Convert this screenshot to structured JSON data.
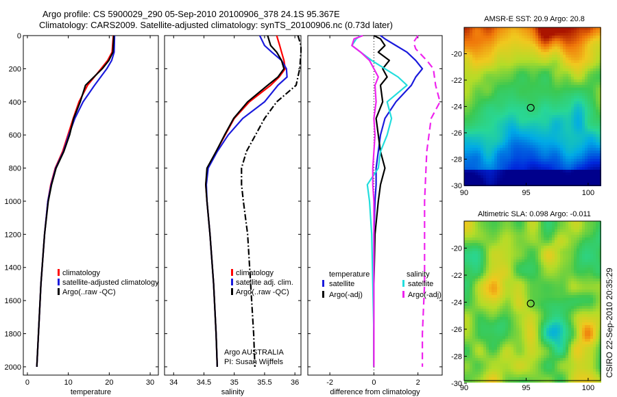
{
  "header": {
    "line1": "Argo profile: CS 5900029_290 05-Sep-2010 20100906_378 24.1S 95.367E",
    "line2": "Climatology: CARS2009. Satellite-adjusted climatology: synTS_20100906.nc (0.73d later)"
  },
  "side_label": "CSIRO 22-Sep-2010 20:35:29",
  "colors": {
    "clim": "#ff0000",
    "sat": "#1a1adc",
    "argo": "#000000",
    "sat_sal": "#22dddd",
    "argo_sal": "#ee22ee"
  },
  "chart_data": [
    {
      "type": "line",
      "xlabel": "temperature",
      "xlim": [
        -1,
        32
      ],
      "ylim": [
        2050,
        0
      ],
      "xticks": [
        0,
        10,
        20,
        30
      ],
      "yticks": [
        0,
        200,
        400,
        600,
        800,
        1000,
        1200,
        1400,
        1600,
        1800,
        2000
      ],
      "legend": [
        "climatology",
        "satellite-adjusted climatology",
        "Argo(..raw -QC)"
      ],
      "series": [
        {
          "name": "climatology",
          "color": "clim",
          "dash": "",
          "depth": [
            0,
            100,
            150,
            200,
            300,
            400,
            500,
            600,
            700,
            800,
            900,
            1000,
            1200,
            1500,
            1800,
            2000
          ],
          "values": [
            21.0,
            20.7,
            19.6,
            18.0,
            14.7,
            12.6,
            11.2,
            9.9,
            8.6,
            6.8,
            5.7,
            5.0,
            4.2,
            3.3,
            2.7,
            2.3
          ]
        },
        {
          "name": "satellite-adjusted climatology",
          "color": "sat",
          "dash": "",
          "depth": [
            0,
            100,
            150,
            200,
            300,
            400,
            500,
            600,
            700,
            800,
            900,
            1000,
            1200,
            1500,
            1800,
            2000
          ],
          "values": [
            21.3,
            21.2,
            20.6,
            19.4,
            16.4,
            13.6,
            11.6,
            10.1,
            8.8,
            6.9,
            5.8,
            5.0,
            4.2,
            3.3,
            2.7,
            2.3
          ]
        },
        {
          "name": "Argo(..raw -QC)",
          "color": "argo",
          "dash": "",
          "depth": [
            0,
            100,
            150,
            200,
            300,
            400,
            500,
            600,
            700,
            800,
            900,
            1000,
            1200,
            1500,
            1800,
            2000
          ],
          "values": [
            21.1,
            20.9,
            19.9,
            18.3,
            14.2,
            12.9,
            11.3,
            10.3,
            8.9,
            7.0,
            5.9,
            5.1,
            4.2,
            3.3,
            2.7,
            2.3
          ]
        }
      ]
    },
    {
      "type": "line",
      "xlabel": "salinity",
      "xlim": [
        33.85,
        36.1
      ],
      "ylim": [
        2050,
        0
      ],
      "xticks": [
        34,
        34.5,
        35,
        35.5,
        36
      ],
      "legend": [
        "climatology",
        "satellite adj. clim.",
        "Argo(..raw -QC)"
      ],
      "annotation": [
        "Argo AUSTRALIA",
        "PI: Susan Wijffels"
      ],
      "series": [
        {
          "name": "climatology",
          "color": "clim",
          "dash": "",
          "depth": [
            0,
            60,
            100,
            150,
            200,
            250,
            300,
            400,
            500,
            600,
            700,
            800,
            900,
            1000,
            1200,
            1500,
            1800,
            2000
          ],
          "values": [
            35.7,
            35.75,
            35.78,
            35.82,
            35.84,
            35.74,
            35.6,
            35.25,
            35.0,
            34.85,
            34.7,
            34.56,
            34.53,
            34.55,
            34.6,
            34.66,
            34.7,
            34.72
          ]
        },
        {
          "name": "satellite adj. clim.",
          "color": "sat",
          "dash": "",
          "depth": [
            0,
            60,
            100,
            150,
            200,
            250,
            300,
            400,
            500,
            600,
            700,
            800,
            900,
            1000,
            1200,
            1500,
            1800,
            2000
          ],
          "values": [
            35.42,
            35.5,
            35.62,
            35.78,
            35.86,
            35.87,
            35.72,
            35.5,
            35.14,
            34.9,
            34.72,
            34.57,
            34.54,
            34.55,
            34.6,
            34.66,
            34.7,
            34.72
          ]
        },
        {
          "name": "Argo(..raw -QC)",
          "color": "argo",
          "dash": "",
          "depth": [
            0,
            60,
            100,
            150,
            200,
            250,
            300,
            400,
            500,
            600,
            700,
            800,
            900,
            1000,
            1200,
            1500,
            1800,
            2000
          ],
          "values": [
            35.55,
            35.6,
            35.7,
            35.78,
            35.82,
            35.72,
            35.55,
            35.22,
            34.99,
            34.84,
            34.7,
            34.55,
            34.53,
            34.55,
            34.6,
            34.66,
            34.7,
            34.72
          ]
        },
        {
          "name": "Argo raw",
          "color": "argo",
          "dash": "9 3 2 3",
          "depth": [
            0,
            60,
            100,
            200,
            300,
            400,
            500,
            600,
            700,
            800,
            900,
            1000,
            1200,
            1500,
            1800,
            2000
          ],
          "values": [
            36.05,
            36.1,
            36.1,
            36.08,
            36.02,
            35.7,
            35.5,
            35.35,
            35.2,
            35.12,
            35.12,
            35.15,
            35.22,
            35.27,
            35.32,
            35.34
          ]
        }
      ]
    },
    {
      "type": "line",
      "xlabel": "difference from climatology",
      "xlim": [
        -3.0,
        3.1
      ],
      "ylim": [
        2050,
        0
      ],
      "xticks": [
        -2,
        0,
        2
      ],
      "legend_groups": [
        {
          "title": "temperature",
          "items": [
            "satellite",
            "Argo(-adj)"
          ]
        },
        {
          "title": "salinity",
          "items": [
            "satellite",
            "Argo(-adj)"
          ]
        }
      ],
      "series": [
        {
          "name": "temperature satellite",
          "color": "sat",
          "dash": "",
          "depth": [
            0,
            20,
            60,
            100,
            150,
            200,
            250,
            300,
            400,
            500,
            600,
            700,
            800,
            900,
            1000,
            1200,
            1500,
            1800,
            2000
          ],
          "values": [
            0.3,
            0.5,
            1.0,
            1.5,
            1.9,
            2.2,
            1.9,
            1.7,
            1.0,
            0.5,
            0.3,
            0.2,
            0.1,
            0.1,
            0.05,
            0.0,
            0.0,
            0.0,
            0.0
          ]
        },
        {
          "name": "temperature Argo(-adj)",
          "color": "argo",
          "dash": "",
          "depth": [
            0,
            20,
            60,
            100,
            150,
            200,
            250,
            300,
            400,
            500,
            600,
            700,
            800,
            900,
            1000,
            1200,
            1500,
            1800,
            2000
          ],
          "values": [
            0.0,
            0.3,
            0.5,
            0.2,
            0.7,
            0.4,
            0.6,
            0.3,
            0.4,
            0.1,
            0.2,
            0.3,
            0.5,
            0.3,
            0.2,
            0.05,
            0.0,
            0.0,
            0.0
          ]
        },
        {
          "name": "salinity satellite",
          "color": "sat_sal",
          "dash": "",
          "depth": [
            0,
            20,
            60,
            100,
            150,
            200,
            250,
            300,
            400,
            500,
            600,
            700,
            800,
            900,
            1000,
            1200,
            1500,
            1800,
            2000
          ],
          "values": [
            -0.6,
            -0.8,
            -1.0,
            -0.6,
            -0.1,
            0.5,
            1.1,
            1.5,
            0.6,
            0.8,
            0.6,
            0.3,
            0.2,
            -0.3,
            -0.2,
            -0.1,
            -0.05,
            0.0,
            0.0
          ]
        },
        {
          "name": "salinity Argo(-adj)",
          "color": "argo_sal",
          "dash": "",
          "depth": [
            0,
            20,
            60,
            100,
            150,
            200,
            250,
            300,
            400,
            500,
            600,
            700,
            800,
            900,
            1000,
            1200,
            1500,
            1800,
            2000
          ],
          "values": [
            -0.5,
            -0.9,
            -1.0,
            -0.6,
            -0.2,
            0.0,
            0.2,
            0.05,
            0.1,
            0.0,
            0.05,
            0.0,
            -0.05,
            -0.05,
            0.0,
            0.0,
            0.0,
            0.0,
            0.0
          ]
        },
        {
          "name": "salinity Argo(-adj) dashed",
          "color": "argo_sal",
          "dash": "10 6",
          "depth": [
            0,
            40,
            80,
            150,
            200,
            300,
            400,
            500,
            700,
            1000,
            1200,
            1500,
            1800,
            2000
          ],
          "values": [
            2.0,
            1.8,
            1.9,
            2.4,
            2.7,
            2.8,
            3.0,
            2.6,
            2.4,
            2.3,
            2.3,
            2.3,
            2.2,
            2.2
          ]
        }
      ]
    },
    {
      "type": "heatmap",
      "title": "AMSR-E SST: 20.9 Argo: 20.8",
      "xlim": [
        90,
        101
      ],
      "ylim": [
        -30,
        -18
      ],
      "xticks": [
        90,
        95,
        100
      ],
      "yticks": [
        -20,
        -22,
        -24,
        -26,
        -28,
        -30
      ],
      "marker": [
        95.37,
        -24.1
      ]
    },
    {
      "type": "heatmap",
      "title": "Altimetric SLA: 0.098 Argo: -0.011",
      "xlim": [
        90,
        101
      ],
      "ylim": [
        -29.8,
        -18
      ],
      "xticks": [
        90,
        95,
        100
      ],
      "yticks": [
        -20,
        -22,
        -24,
        -26,
        -28,
        -30
      ],
      "marker": [
        95.37,
        -24.1
      ]
    }
  ]
}
